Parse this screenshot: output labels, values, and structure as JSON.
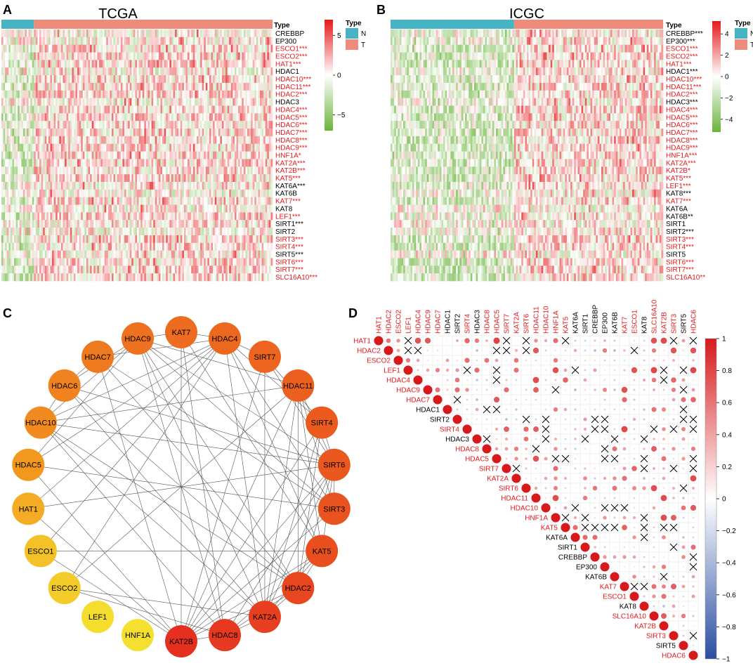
{
  "panels": {
    "A": {
      "letter": "A",
      "title": "TCGA",
      "type_label": "Type",
      "legend_title": "Type",
      "legend_items": [
        {
          "label": "N",
          "color": "#46b4c3"
        },
        {
          "label": "T",
          "color": "#ee8c7c"
        }
      ],
      "colorbar_ticks": [
        {
          "label": "5",
          "value": 5
        },
        {
          "label": "0",
          "value": 0
        },
        {
          "label": "−5",
          "value": -5
        }
      ],
      "colorbar_range": [
        -7,
        7
      ],
      "normal_fraction": 0.12,
      "genes": [
        {
          "name": "CREBBP",
          "sig": "",
          "red": false
        },
        {
          "name": "EP300",
          "sig": "",
          "red": false
        },
        {
          "name": "ESCO1",
          "sig": "***",
          "red": true
        },
        {
          "name": "ESCO2",
          "sig": "***",
          "red": true
        },
        {
          "name": "HAT1",
          "sig": "***",
          "red": true
        },
        {
          "name": "HDAC1",
          "sig": "",
          "red": false
        },
        {
          "name": "HDAC10",
          "sig": "***",
          "red": true
        },
        {
          "name": "HDAC11",
          "sig": "***",
          "red": true
        },
        {
          "name": "HDAC2",
          "sig": "***",
          "red": true
        },
        {
          "name": "HDAC3",
          "sig": "",
          "red": false
        },
        {
          "name": "HDAC4",
          "sig": "***",
          "red": true
        },
        {
          "name": "HDAC5",
          "sig": "***",
          "red": true
        },
        {
          "name": "HDAC6",
          "sig": "***",
          "red": true
        },
        {
          "name": "HDAC7",
          "sig": "***",
          "red": true
        },
        {
          "name": "HDAC8",
          "sig": "***",
          "red": true
        },
        {
          "name": "HDAC9",
          "sig": "***",
          "red": true
        },
        {
          "name": "HNF1A",
          "sig": "*",
          "red": true
        },
        {
          "name": "KAT2A",
          "sig": "***",
          "red": true
        },
        {
          "name": "KAT2B",
          "sig": "***",
          "red": true
        },
        {
          "name": "KAT5",
          "sig": "***",
          "red": true
        },
        {
          "name": "KAT6A",
          "sig": "***",
          "red": false
        },
        {
          "name": "KAT6B",
          "sig": "",
          "red": false
        },
        {
          "name": "KAT7",
          "sig": "***",
          "red": true
        },
        {
          "name": "KAT8",
          "sig": "",
          "red": false
        },
        {
          "name": "LEF1",
          "sig": "***",
          "red": true
        },
        {
          "name": "SIRT1",
          "sig": "***",
          "red": false
        },
        {
          "name": "SIRT2",
          "sig": "",
          "red": false
        },
        {
          "name": "SIRT3",
          "sig": "***",
          "red": true
        },
        {
          "name": "SIRT4",
          "sig": "***",
          "red": true
        },
        {
          "name": "SIRT5",
          "sig": "***",
          "red": false
        },
        {
          "name": "SIRT6",
          "sig": "***",
          "red": true
        },
        {
          "name": "SIRT7",
          "sig": "***",
          "red": true
        },
        {
          "name": "SLC16A10",
          "sig": "***",
          "red": true
        }
      ]
    },
    "B": {
      "letter": "B",
      "title": "ICGC",
      "type_label": "Type",
      "legend_title": "Type",
      "legend_items": [
        {
          "label": "N",
          "color": "#46b4c3"
        },
        {
          "label": "T",
          "color": "#ee8c7c"
        }
      ],
      "colorbar_ticks": [
        {
          "label": "4",
          "value": 4
        },
        {
          "label": "2",
          "value": 2
        },
        {
          "label": "0",
          "value": 0
        },
        {
          "label": "−2",
          "value": -2
        },
        {
          "label": "−4",
          "value": -4
        }
      ],
      "colorbar_range": [
        -5.2,
        5.2
      ],
      "normal_fraction": 0.45,
      "genes": [
        {
          "name": "CREBBP",
          "sig": "***",
          "red": false
        },
        {
          "name": "EP300",
          "sig": "***",
          "red": false
        },
        {
          "name": "ESCO1",
          "sig": "***",
          "red": true
        },
        {
          "name": "ESCO2",
          "sig": "***",
          "red": true
        },
        {
          "name": "HAT1",
          "sig": "***",
          "red": true
        },
        {
          "name": "HDAC1",
          "sig": "***",
          "red": false
        },
        {
          "name": "HDAC10",
          "sig": "***",
          "red": true
        },
        {
          "name": "HDAC11",
          "sig": "***",
          "red": true
        },
        {
          "name": "HDAC2",
          "sig": "***",
          "red": true
        },
        {
          "name": "HDAC3",
          "sig": "***",
          "red": false
        },
        {
          "name": "HDAC4",
          "sig": "***",
          "red": true
        },
        {
          "name": "HDAC5",
          "sig": "***",
          "red": true
        },
        {
          "name": "HDAC6",
          "sig": "***",
          "red": true
        },
        {
          "name": "HDAC7",
          "sig": "***",
          "red": true
        },
        {
          "name": "HDAC8",
          "sig": "***",
          "red": true
        },
        {
          "name": "HDAC9",
          "sig": "***",
          "red": true
        },
        {
          "name": "HNF1A",
          "sig": "***",
          "red": true
        },
        {
          "name": "KAT2A",
          "sig": "***",
          "red": true
        },
        {
          "name": "KAT2B",
          "sig": "*",
          "red": true
        },
        {
          "name": "KAT5",
          "sig": "***",
          "red": true
        },
        {
          "name": "LEF1",
          "sig": "***",
          "red": true
        },
        {
          "name": "KAT8",
          "sig": "***",
          "red": false
        },
        {
          "name": "KAT7",
          "sig": "***",
          "red": true
        },
        {
          "name": "KAT6A",
          "sig": "",
          "red": false
        },
        {
          "name": "KAT6B",
          "sig": "**",
          "red": false
        },
        {
          "name": "SIRT1",
          "sig": "",
          "red": false
        },
        {
          "name": "SIRT2",
          "sig": "***",
          "red": false
        },
        {
          "name": "SIRT3",
          "sig": "***",
          "red": true
        },
        {
          "name": "SIRT4",
          "sig": "***",
          "red": true
        },
        {
          "name": "SIRT5",
          "sig": "",
          "red": false
        },
        {
          "name": "SIRT6",
          "sig": "***",
          "red": true
        },
        {
          "name": "SIRT7",
          "sig": "***",
          "red": true
        },
        {
          "name": "SLC16A10",
          "sig": "**",
          "red": true
        }
      ]
    },
    "C": {
      "letter": "C",
      "nodes": [
        {
          "name": "KAT7",
          "degree": 0.72
        },
        {
          "name": "HDAC4",
          "degree": 0.74
        },
        {
          "name": "SIRT7",
          "degree": 0.76
        },
        {
          "name": "HDAC11",
          "degree": 0.78
        },
        {
          "name": "SIRT4",
          "degree": 0.8
        },
        {
          "name": "SIRT6",
          "degree": 0.82
        },
        {
          "name": "SIRT3",
          "degree": 0.84
        },
        {
          "name": "KAT5",
          "degree": 0.86
        },
        {
          "name": "HDAC2",
          "degree": 0.9
        },
        {
          "name": "KAT2A",
          "degree": 0.93
        },
        {
          "name": "HDAC8",
          "degree": 0.96
        },
        {
          "name": "KAT2B",
          "degree": 1.0
        },
        {
          "name": "HNF1A",
          "degree": 0.0
        },
        {
          "name": "LEF1",
          "degree": 0.02
        },
        {
          "name": "ESCO2",
          "degree": 0.15
        },
        {
          "name": "ESCO1",
          "degree": 0.22
        },
        {
          "name": "HAT1",
          "degree": 0.38
        },
        {
          "name": "HDAC5",
          "degree": 0.52
        },
        {
          "name": "HDAC10",
          "degree": 0.58
        },
        {
          "name": "HDAC6",
          "degree": 0.62
        },
        {
          "name": "HDAC7",
          "degree": 0.66
        },
        {
          "name": "HDAC9",
          "degree": 0.7
        }
      ]
    },
    "D": {
      "letter": "D",
      "colorbar_ticks": [
        {
          "label": "1",
          "value": 1
        },
        {
          "label": "0.8",
          "value": 0.8
        },
        {
          "label": "0.6",
          "value": 0.6
        },
        {
          "label": "0.4",
          "value": 0.4
        },
        {
          "label": "0.2",
          "value": 0.2
        },
        {
          "label": "0",
          "value": 0
        },
        {
          "label": "−0.2",
          "value": -0.2
        },
        {
          "label": "−0.4",
          "value": -0.4
        },
        {
          "label": "−0.6",
          "value": -0.6
        },
        {
          "label": "−0.8",
          "value": -0.8
        },
        {
          "label": "−1",
          "value": -1
        }
      ],
      "genes": [
        {
          "name": "HAT1",
          "red": true
        },
        {
          "name": "HDAC2",
          "red": true
        },
        {
          "name": "ESCO2",
          "red": true
        },
        {
          "name": "LEF1",
          "red": true
        },
        {
          "name": "HDAC4",
          "red": true
        },
        {
          "name": "HDAC9",
          "red": true
        },
        {
          "name": "HDAC7",
          "red": true
        },
        {
          "name": "HDAC1",
          "red": false
        },
        {
          "name": "SIRT2",
          "red": false
        },
        {
          "name": "SIRT4",
          "red": true
        },
        {
          "name": "HDAC3",
          "red": false
        },
        {
          "name": "HDAC8",
          "red": true
        },
        {
          "name": "HDAC5",
          "red": true
        },
        {
          "name": "SIRT7",
          "red": true
        },
        {
          "name": "KAT2A",
          "red": true
        },
        {
          "name": "SIRT6",
          "red": true
        },
        {
          "name": "HDAC11",
          "red": true
        },
        {
          "name": "HDAC10",
          "red": true
        },
        {
          "name": "HNF1A",
          "red": true
        },
        {
          "name": "KAT5",
          "red": true
        },
        {
          "name": "KAT6A",
          "red": false
        },
        {
          "name": "SIRT1",
          "red": false
        },
        {
          "name": "CREBBP",
          "red": false
        },
        {
          "name": "EP300",
          "red": false
        },
        {
          "name": "KAT6B",
          "red": false
        },
        {
          "name": "KAT7",
          "red": true
        },
        {
          "name": "ESCO1",
          "red": true
        },
        {
          "name": "KAT8",
          "red": false
        },
        {
          "name": "SLC16A10",
          "red": true
        },
        {
          "name": "KAT2B",
          "red": true
        },
        {
          "name": "SIRT3",
          "red": true
        },
        {
          "name": "SIRT5",
          "red": false
        },
        {
          "name": "HDAC6",
          "red": true
        }
      ]
    }
  },
  "colors": {
    "normal": "#46b4c3",
    "tumor": "#ee8c7c",
    "heat_high": "#e41a1c",
    "heat_low": "#6ab43a",
    "corr_pos": "#d7191c",
    "corr_neg": "#2b4ea2",
    "sig_label": "#e41a1c"
  },
  "chart_data": [
    {
      "type": "heatmap",
      "title": "TCGA",
      "rows": [
        "CREBBP",
        "EP300",
        "ESCO1",
        "ESCO2",
        "HAT1",
        "HDAC1",
        "HDAC10",
        "HDAC11",
        "HDAC2",
        "HDAC3",
        "HDAC4",
        "HDAC5",
        "HDAC6",
        "HDAC7",
        "HDAC8",
        "HDAC9",
        "HNF1A",
        "KAT2A",
        "KAT2B",
        "KAT5",
        "KAT6A",
        "KAT6B",
        "KAT7",
        "KAT8",
        "LEF1",
        "SIRT1",
        "SIRT2",
        "SIRT3",
        "SIRT4",
        "SIRT5",
        "SIRT6",
        "SIRT7",
        "SLC16A10"
      ],
      "column_groups": [
        "N",
        "T"
      ],
      "color_range": [
        -7,
        7
      ]
    },
    {
      "type": "heatmap",
      "title": "ICGC",
      "rows": [
        "CREBBP",
        "EP300",
        "ESCO1",
        "ESCO2",
        "HAT1",
        "HDAC1",
        "HDAC10",
        "HDAC11",
        "HDAC2",
        "HDAC3",
        "HDAC4",
        "HDAC5",
        "HDAC6",
        "HDAC7",
        "HDAC8",
        "HDAC9",
        "HNF1A",
        "KAT2A",
        "KAT2B",
        "KAT5",
        "LEF1",
        "KAT8",
        "KAT7",
        "KAT6A",
        "KAT6B",
        "SIRT1",
        "SIRT2",
        "SIRT3",
        "SIRT4",
        "SIRT5",
        "SIRT6",
        "SIRT7",
        "SLC16A10"
      ],
      "column_groups": [
        "N",
        "T"
      ],
      "color_range": [
        -5.2,
        5.2
      ]
    },
    {
      "type": "network",
      "title": "",
      "nodes": [
        "KAT7",
        "HDAC4",
        "SIRT7",
        "HDAC11",
        "SIRT4",
        "SIRT6",
        "SIRT3",
        "KAT5",
        "HDAC2",
        "KAT2A",
        "HDAC8",
        "KAT2B",
        "HNF1A",
        "LEF1",
        "ESCO2",
        "ESCO1",
        "HAT1",
        "HDAC5",
        "HDAC10",
        "HDAC6",
        "HDAC7",
        "HDAC9"
      ]
    },
    {
      "type": "heatmap",
      "title": "",
      "subtype": "correlation",
      "variables": [
        "HAT1",
        "HDAC2",
        "ESCO2",
        "LEF1",
        "HDAC4",
        "HDAC9",
        "HDAC7",
        "HDAC1",
        "SIRT2",
        "SIRT4",
        "HDAC3",
        "HDAC8",
        "HDAC5",
        "SIRT7",
        "KAT2A",
        "SIRT6",
        "HDAC11",
        "HDAC10",
        "HNF1A",
        "KAT5",
        "KAT6A",
        "SIRT1",
        "CREBBP",
        "EP300",
        "KAT6B",
        "KAT7",
        "ESCO1",
        "KAT8",
        "SLC16A10",
        "KAT2B",
        "SIRT3",
        "SIRT5",
        "HDAC6"
      ],
      "color_range": [
        -1,
        1
      ]
    }
  ]
}
